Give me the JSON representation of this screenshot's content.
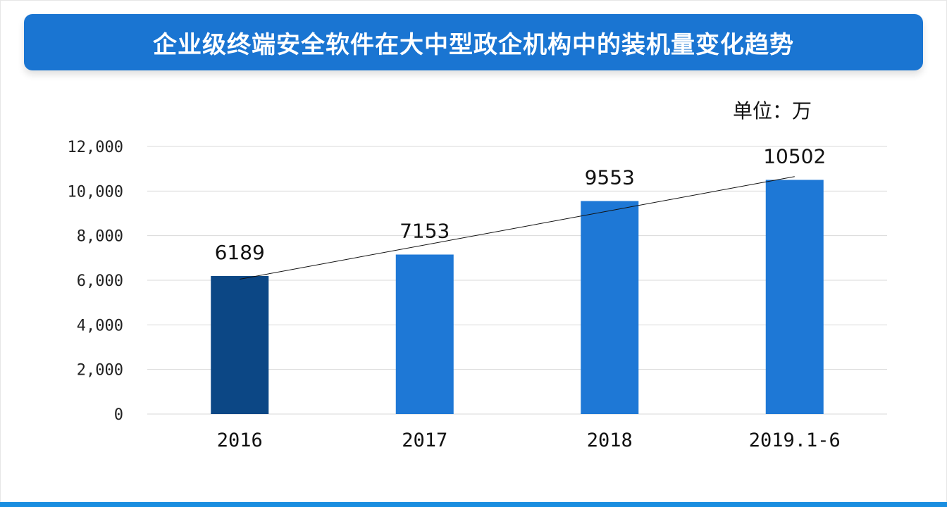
{
  "title": "企业级终端安全软件在大中型政企机构中的装机量变化趋势",
  "unit": "单位：万",
  "colors": {
    "banner": "#1a75d2",
    "bar": "#1e78d6",
    "bar_highlight": "#0c4785",
    "grid": "#d9d9d9",
    "bottom_bar": "#1a8ee0"
  },
  "chart_data": {
    "type": "bar",
    "categories": [
      "2016",
      "2017",
      "2018",
      "2019.1-6"
    ],
    "values": [
      6189,
      7153,
      9553,
      10502
    ],
    "data_labels": [
      "6189",
      "7153",
      "9553",
      "10502"
    ],
    "highlight_index": 0,
    "ylim": [
      0,
      12000
    ],
    "yticks": [
      0,
      2000,
      4000,
      6000,
      8000,
      10000,
      12000
    ],
    "ytick_labels": [
      "0",
      "2,000",
      "4,000",
      "6,000",
      "8,000",
      "10,000",
      "12,000"
    ],
    "trendline": true,
    "grid": true,
    "xlabel": "",
    "ylabel": ""
  }
}
